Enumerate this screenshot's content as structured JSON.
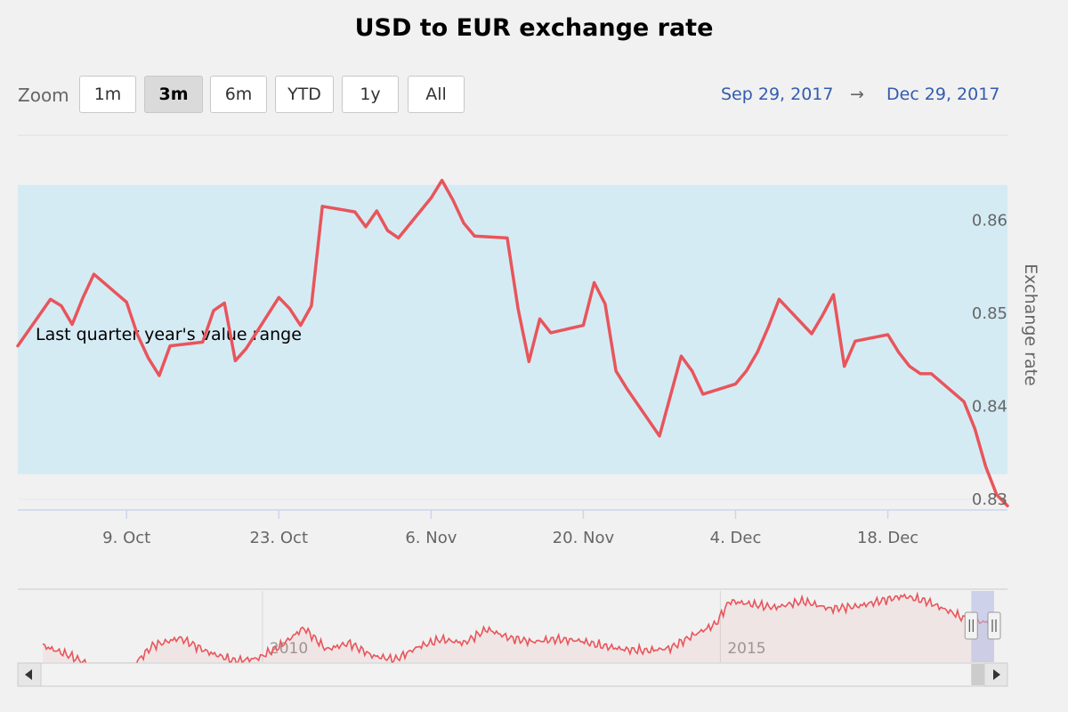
{
  "chart_data": {
    "type": "line",
    "title": "USD to EUR exchange rate",
    "ylabel": "Exchange rate",
    "xlabel": "",
    "ylim": [
      0.83,
      0.865
    ],
    "yticks": [
      0.83,
      0.84,
      0.85,
      0.86
    ],
    "ytick_labels": [
      "0.83",
      "0.84",
      "0.85",
      "0.86"
    ],
    "x_start": "Sep 29, 2017",
    "x_end": "Dec 29, 2017",
    "xticks": [
      "2017-10-09",
      "2017-10-23",
      "2017-11-06",
      "2017-11-20",
      "2017-12-04",
      "2017-12-18"
    ],
    "xtick_labels": [
      "9. Oct",
      "23. Oct",
      "6. Nov",
      "20. Nov",
      "4. Dec",
      "18. Dec"
    ],
    "band": {
      "from": 0.8327,
      "to": 0.8638,
      "label": "Last quarter year's value range",
      "color": "#d0eaf5"
    },
    "series": [
      {
        "color": "#e8555b",
        "x": [
          "2017-09-29",
          "2017-10-02",
          "2017-10-03",
          "2017-10-04",
          "2017-10-05",
          "2017-10-06",
          "2017-10-09",
          "2017-10-10",
          "2017-10-11",
          "2017-10-12",
          "2017-10-13",
          "2017-10-16",
          "2017-10-17",
          "2017-10-18",
          "2017-10-19",
          "2017-10-20",
          "2017-10-23",
          "2017-10-24",
          "2017-10-25",
          "2017-10-26",
          "2017-10-27",
          "2017-10-30",
          "2017-10-31",
          "2017-11-01",
          "2017-11-02",
          "2017-11-03",
          "2017-11-06",
          "2017-11-07",
          "2017-11-08",
          "2017-11-09",
          "2017-11-10",
          "2017-11-13",
          "2017-11-14",
          "2017-11-15",
          "2017-11-16",
          "2017-11-17",
          "2017-11-20",
          "2017-11-21",
          "2017-11-22",
          "2017-11-23",
          "2017-11-24",
          "2017-11-27",
          "2017-11-28",
          "2017-11-29",
          "2017-11-30",
          "2017-12-01",
          "2017-12-04",
          "2017-12-05",
          "2017-12-06",
          "2017-12-07",
          "2017-12-08",
          "2017-12-11",
          "2017-12-12",
          "2017-12-13",
          "2017-12-14",
          "2017-12-15",
          "2017-12-18",
          "2017-12-19",
          "2017-12-20",
          "2017-12-21",
          "2017-12-22",
          "2017-12-25",
          "2017-12-26",
          "2017-12-27",
          "2017-12-28",
          "2017-12-29"
        ],
        "values": [
          0.8465,
          0.8515,
          0.8508,
          0.8488,
          0.8517,
          0.8542,
          0.8512,
          0.8477,
          0.8452,
          0.8433,
          0.8465,
          0.8469,
          0.8503,
          0.8511,
          0.8449,
          0.8462,
          0.8517,
          0.8505,
          0.8487,
          0.8508,
          0.8615,
          0.8609,
          0.8593,
          0.861,
          0.8589,
          0.8581,
          0.8624,
          0.8643,
          0.8622,
          0.8597,
          0.8583,
          0.8581,
          0.8505,
          0.8448,
          0.8494,
          0.8479,
          0.8487,
          0.8533,
          0.851,
          0.8438,
          0.8419,
          0.8368,
          0.8411,
          0.8454,
          0.8438,
          0.8413,
          0.8424,
          0.8438,
          0.8458,
          0.8485,
          0.8515,
          0.8478,
          0.8498,
          0.852,
          0.8443,
          0.847,
          0.8477,
          0.8458,
          0.8443,
          0.8435,
          0.8435,
          0.8405,
          0.8376,
          0.8335,
          0.8305,
          0.8293
        ]
      }
    ]
  },
  "navigator": {
    "year_labels": [
      "2010",
      "2015"
    ],
    "start_year": 2007.6,
    "end_year": 2017.99,
    "selection": {
      "from": 2017.74,
      "to": 2017.99
    },
    "ylim": [
      0.68,
      0.96
    ],
    "points": [
      [
        2007.6,
        0.745
      ],
      [
        2007.9,
        0.705
      ],
      [
        2008.2,
        0.655
      ],
      [
        2008.5,
        0.635
      ],
      [
        2008.8,
        0.745
      ],
      [
        2009.1,
        0.775
      ],
      [
        2009.4,
        0.72
      ],
      [
        2009.7,
        0.685
      ],
      [
        2009.95,
        0.695
      ],
      [
        2010.2,
        0.745
      ],
      [
        2010.45,
        0.815
      ],
      [
        2010.7,
        0.73
      ],
      [
        2010.95,
        0.755
      ],
      [
        2011.2,
        0.705
      ],
      [
        2011.45,
        0.69
      ],
      [
        2011.7,
        0.74
      ],
      [
        2011.95,
        0.77
      ],
      [
        2012.2,
        0.755
      ],
      [
        2012.45,
        0.81
      ],
      [
        2012.7,
        0.775
      ],
      [
        2012.95,
        0.76
      ],
      [
        2013.2,
        0.77
      ],
      [
        2013.45,
        0.765
      ],
      [
        2013.7,
        0.745
      ],
      [
        2013.95,
        0.73
      ],
      [
        2014.2,
        0.725
      ],
      [
        2014.45,
        0.735
      ],
      [
        2014.7,
        0.785
      ],
      [
        2014.95,
        0.83
      ],
      [
        2015.1,
        0.92
      ],
      [
        2015.3,
        0.91
      ],
      [
        2015.6,
        0.895
      ],
      [
        2015.9,
        0.92
      ],
      [
        2016.2,
        0.89
      ],
      [
        2016.5,
        0.9
      ],
      [
        2016.8,
        0.925
      ],
      [
        2017.0,
        0.94
      ],
      [
        2017.25,
        0.92
      ],
      [
        2017.5,
        0.88
      ],
      [
        2017.7,
        0.845
      ],
      [
        2017.99,
        0.833
      ]
    ]
  },
  "range_selector": {
    "zoom_label": "Zoom",
    "buttons": [
      "1m",
      "3m",
      "6m",
      "YTD",
      "1y",
      "All"
    ],
    "selected": "3m"
  },
  "input": {
    "from": "Sep 29, 2017",
    "arrow": "→",
    "to": "Dec 29, 2017"
  },
  "colors": {
    "line": "#e8555b",
    "band": "#d0eaf5",
    "navigator_mask": "#b7bde6",
    "date_text": "#335cad"
  }
}
